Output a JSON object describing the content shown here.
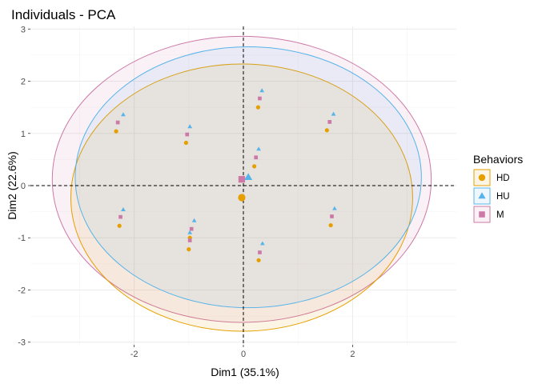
{
  "chart_data": {
    "type": "scatter",
    "title": "Individuals - PCA",
    "xlabel": "Dim1 (35.1%)",
    "ylabel": "Dim2 (22.6%)",
    "xlim": [
      -3.9,
      3.9
    ],
    "ylim": [
      -3.05,
      3.05
    ],
    "x_ticks": [
      -2,
      0,
      2
    ],
    "y_ticks": [
      -3,
      -2,
      -1,
      0,
      1,
      2,
      3
    ],
    "grid": true,
    "reference_lines": {
      "x": 0,
      "y": 0,
      "style": "dashed"
    },
    "legend": {
      "title": "Behaviors",
      "position": "right"
    },
    "series": [
      {
        "name": "HD",
        "color": "#E69F00",
        "marker": "circle",
        "points": [
          {
            "x": -2.33,
            "y": 1.04
          },
          {
            "x": -1.05,
            "y": 0.82
          },
          {
            "x": 0.27,
            "y": 1.5
          },
          {
            "x": 1.53,
            "y": 1.06
          },
          {
            "x": 0.2,
            "y": 0.37
          },
          {
            "x": -2.27,
            "y": -0.77
          },
          {
            "x": -0.98,
            "y": -1.0
          },
          {
            "x": -1.0,
            "y": -1.22
          },
          {
            "x": 0.28,
            "y": -1.43
          },
          {
            "x": 1.6,
            "y": -0.76
          }
        ],
        "centroid": {
          "x": -0.03,
          "y": -0.23
        },
        "ellipse": {
          "cx": -0.03,
          "cy": -0.23,
          "rx": 3.13,
          "ry": 2.56
        }
      },
      {
        "name": "HU",
        "color": "#56B4E9",
        "marker": "triangle",
        "points": [
          {
            "x": -2.2,
            "y": 1.36
          },
          {
            "x": -0.98,
            "y": 1.13
          },
          {
            "x": 0.34,
            "y": 1.82
          },
          {
            "x": 1.65,
            "y": 1.37
          },
          {
            "x": 0.28,
            "y": 0.7
          },
          {
            "x": -2.2,
            "y": -0.46
          },
          {
            "x": -0.9,
            "y": -0.67
          },
          {
            "x": -0.98,
            "y": -0.9
          },
          {
            "x": 0.35,
            "y": -1.11
          },
          {
            "x": 1.67,
            "y": -0.44
          }
        ],
        "centroid": {
          "x": 0.09,
          "y": 0.16
        },
        "ellipse": {
          "cx": 0.09,
          "cy": 0.16,
          "rx": 3.17,
          "ry": 2.5
        }
      },
      {
        "name": "M",
        "color": "#CC79A7",
        "marker": "square",
        "points": [
          {
            "x": -2.3,
            "y": 1.21
          },
          {
            "x": -1.03,
            "y": 0.98
          },
          {
            "x": 0.3,
            "y": 1.67
          },
          {
            "x": 1.58,
            "y": 1.22
          },
          {
            "x": 0.23,
            "y": 0.54
          },
          {
            "x": -2.25,
            "y": -0.6
          },
          {
            "x": -0.95,
            "y": -0.83
          },
          {
            "x": -0.98,
            "y": -1.05
          },
          {
            "x": 0.3,
            "y": -1.28
          },
          {
            "x": 1.62,
            "y": -0.59
          }
        ],
        "centroid": {
          "x": -0.03,
          "y": 0.12
        },
        "ellipse": {
          "cx": -0.03,
          "cy": 0.12,
          "rx": 3.47,
          "ry": 2.74
        }
      }
    ]
  }
}
